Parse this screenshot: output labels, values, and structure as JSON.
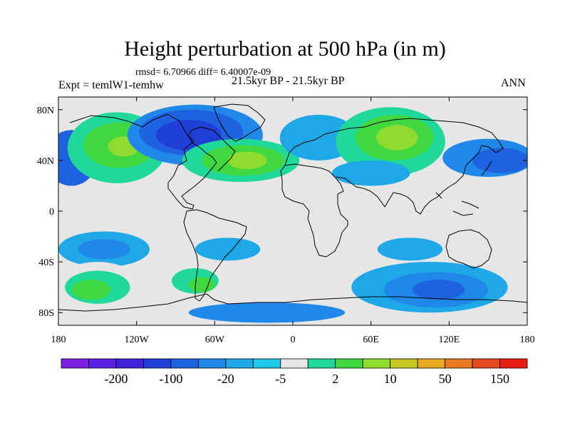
{
  "figure": {
    "title": "Height perturbation at 500 hPa (in m)",
    "stats": "rmsd= 6.70966  diff= 6.40007e-09",
    "left_label": "Expt = temlW1-temhw",
    "center_label": "21.5kyr BP - 21.5kyr BP",
    "right_label": "ANN"
  },
  "map": {
    "projection": "cylindrical-equidistant",
    "lon_range": [
      -180,
      180
    ],
    "lat_range": [
      -90,
      90
    ],
    "x_ticks": [
      {
        "lon": -180,
        "label": "180"
      },
      {
        "lon": -120,
        "label": "120W"
      },
      {
        "lon": -60,
        "label": "60W"
      },
      {
        "lon": 0,
        "label": "0"
      },
      {
        "lon": 60,
        "label": "60E"
      },
      {
        "lon": 120,
        "label": "120E"
      },
      {
        "lon": 180,
        "label": "180"
      }
    ],
    "y_ticks": [
      {
        "lat": 80,
        "label": "80N"
      },
      {
        "lat": 40,
        "label": "40N"
      },
      {
        "lat": 0,
        "label": "0"
      },
      {
        "lat": -40,
        "label": "40S"
      },
      {
        "lat": -80,
        "label": "80S"
      }
    ],
    "fields": [
      {
        "name": "mid-pacific-low",
        "lon": -173,
        "lat": 43,
        "rx": 13,
        "ry": 15,
        "level": 3
      },
      {
        "name": "mid-pacific-low-outer",
        "lon": -170,
        "lat": 42,
        "rx": 20,
        "ry": 22,
        "level": 4
      },
      {
        "name": "alaska-high-outer",
        "lon": -135,
        "lat": 50,
        "rx": 38,
        "ry": 28,
        "level": 9
      },
      {
        "name": "alaska-high",
        "lon": -133,
        "lat": 52,
        "rx": 28,
        "ry": 18,
        "level": 10
      },
      {
        "name": "alaska-high-core",
        "lon": -130,
        "lat": 51,
        "rx": 12,
        "ry": 8,
        "level": 11
      },
      {
        "name": "canada-low-outer",
        "lon": -75,
        "lat": 60,
        "rx": 52,
        "ry": 24,
        "level": 5
      },
      {
        "name": "canada-low",
        "lon": -78,
        "lat": 62,
        "rx": 40,
        "ry": 18,
        "level": 4
      },
      {
        "name": "canada-low-core",
        "lon": -80,
        "lat": 60,
        "rx": 25,
        "ry": 12,
        "level": 3
      },
      {
        "name": "atlantic-high-outer",
        "lon": -40,
        "lat": 40,
        "rx": 45,
        "ry": 17,
        "level": 9
      },
      {
        "name": "atlantic-high",
        "lon": -38,
        "lat": 40,
        "rx": 32,
        "ry": 12,
        "level": 10
      },
      {
        "name": "atlantic-high-core",
        "lon": -35,
        "lat": 40,
        "rx": 15,
        "ry": 7,
        "level": 11
      },
      {
        "name": "europe-low",
        "lon": 20,
        "lat": 58,
        "rx": 30,
        "ry": 18,
        "level": 6
      },
      {
        "name": "siberia-high-outer",
        "lon": 75,
        "lat": 55,
        "rx": 42,
        "ry": 27,
        "level": 9
      },
      {
        "name": "siberia-high",
        "lon": 78,
        "lat": 58,
        "rx": 30,
        "ry": 18,
        "level": 10
      },
      {
        "name": "siberia-high-core",
        "lon": 80,
        "lat": 58,
        "rx": 16,
        "ry": 10,
        "level": 11
      },
      {
        "name": "asia-low",
        "lon": 60,
        "lat": 30,
        "rx": 30,
        "ry": 10,
        "level": 6
      },
      {
        "name": "east-asia-low-outer",
        "lon": 150,
        "lat": 42,
        "rx": 35,
        "ry": 15,
        "level": 5
      },
      {
        "name": "east-asia-low",
        "lon": 160,
        "lat": 40,
        "rx": 22,
        "ry": 10,
        "level": 4
      },
      {
        "name": "south-pacific-low-outer",
        "lon": -145,
        "lat": -30,
        "rx": 35,
        "ry": 14,
        "level": 6
      },
      {
        "name": "south-pacific-low",
        "lon": -145,
        "lat": -30,
        "rx": 20,
        "ry": 8,
        "level": 5
      },
      {
        "name": "south-america-low",
        "lon": -50,
        "lat": -30,
        "rx": 25,
        "ry": 9,
        "level": 6
      },
      {
        "name": "south-atlantic-high",
        "lon": -10,
        "lat": -28,
        "rx": 15,
        "ry": 7,
        "level": 8
      },
      {
        "name": "south-africa-high",
        "lon": 40,
        "lat": -30,
        "rx": 22,
        "ry": 7,
        "level": 8
      },
      {
        "name": "indian-ocean-low",
        "lon": 90,
        "lat": -30,
        "rx": 25,
        "ry": 9,
        "level": 6
      },
      {
        "name": "south-indian-low-outer",
        "lon": 105,
        "lat": -60,
        "rx": 60,
        "ry": 20,
        "level": 6
      },
      {
        "name": "south-indian-low",
        "lon": 110,
        "lat": -62,
        "rx": 40,
        "ry": 14,
        "level": 5
      },
      {
        "name": "south-indian-low-core",
        "lon": 112,
        "lat": -62,
        "rx": 20,
        "ry": 8,
        "level": 4
      },
      {
        "name": "southern-ocean-west-high-outer",
        "lon": -150,
        "lat": -58,
        "rx": 32,
        "ry": 18,
        "level": 8
      },
      {
        "name": "southern-ocean-west-high",
        "lon": -150,
        "lat": -60,
        "rx": 25,
        "ry": 13,
        "level": 9
      },
      {
        "name": "southern-ocean-west-high-core",
        "lon": -155,
        "lat": -62,
        "rx": 15,
        "ry": 8,
        "level": 10
      },
      {
        "name": "drake-high-outer",
        "lon": -80,
        "lat": -55,
        "rx": 28,
        "ry": 14,
        "level": 8
      },
      {
        "name": "drake-high",
        "lon": -75,
        "lat": -55,
        "rx": 18,
        "ry": 10,
        "level": 9
      },
      {
        "name": "drake-high-core",
        "lon": -70,
        "lat": -58,
        "rx": 10,
        "ry": 6,
        "level": 10
      },
      {
        "name": "antarctic-low",
        "lon": -20,
        "lat": -80,
        "rx": 60,
        "ry": 8,
        "level": 5
      }
    ]
  },
  "colorbar": {
    "labels": [
      {
        "after_box": 1,
        "text": "-200"
      },
      {
        "after_box": 3,
        "text": "-100"
      },
      {
        "after_box": 5,
        "text": "-20"
      },
      {
        "after_box": 7,
        "text": "-5"
      },
      {
        "after_box": 9,
        "text": "2"
      },
      {
        "after_box": 11,
        "text": "10"
      },
      {
        "after_box": 13,
        "text": "50"
      },
      {
        "after_box": 15,
        "text": "150"
      }
    ],
    "colors": [
      "#7d1fe0",
      "#5a1ee0",
      "#4020d8",
      "#1f3fd8",
      "#1f62e0",
      "#1f88e8",
      "#1fa8e8",
      "#1fc8e6",
      "#e6e6e6",
      "#1fd89a",
      "#3fd840",
      "#8fdc2f",
      "#c8c820",
      "#e8a820",
      "#e87a20",
      "#e84a20",
      "#e81c10"
    ]
  }
}
